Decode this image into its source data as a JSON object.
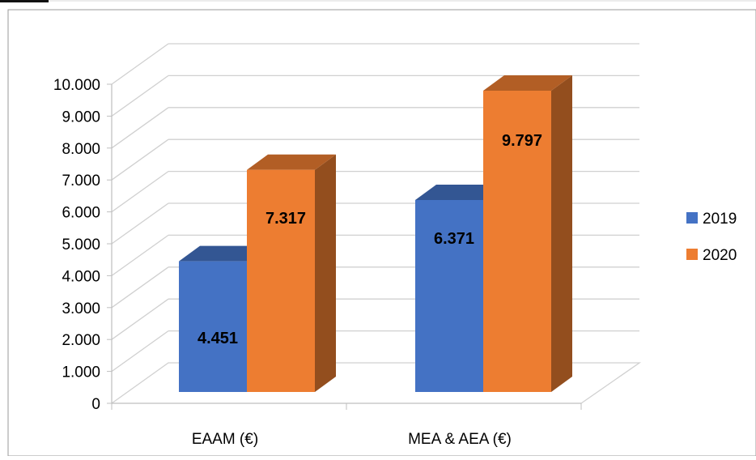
{
  "chart_data": {
    "type": "bar",
    "title": "",
    "xlabel": "",
    "ylabel": "",
    "categories": [
      "EAAM (€)",
      "MEA & AEA (€)"
    ],
    "series": [
      {
        "name": "2019",
        "values": [
          4451,
          6371
        ],
        "labels": [
          "4.451",
          "6.371"
        ],
        "color": "#4472C4"
      },
      {
        "name": "2020",
        "values": [
          7317,
          9797
        ],
        "labels": [
          "7.317",
          "9.797"
        ],
        "color": "#ED7D31"
      }
    ],
    "ylim": [
      0,
      10000
    ],
    "yticks": [
      {
        "value": 0,
        "label": "0"
      },
      {
        "value": 1000,
        "label": "1.000"
      },
      {
        "value": 2000,
        "label": "2.000"
      },
      {
        "value": 3000,
        "label": "3.000"
      },
      {
        "value": 4000,
        "label": "4.000"
      },
      {
        "value": 5000,
        "label": "5.000"
      },
      {
        "value": 6000,
        "label": "6.000"
      },
      {
        "value": 7000,
        "label": "7.000"
      },
      {
        "value": 8000,
        "label": "8.000"
      },
      {
        "value": 9000,
        "label": "9.000"
      },
      {
        "value": 10000,
        "label": "10.000"
      }
    ],
    "grid": true,
    "style": "3d-clustered-column",
    "legend_position": "right"
  }
}
